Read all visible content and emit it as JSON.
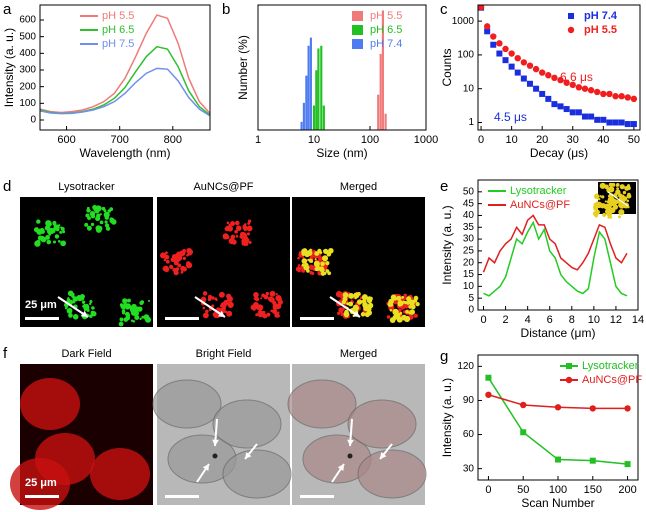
{
  "chart_data": [
    {
      "label": "a",
      "type": "line",
      "x_label": "Wavelength (nm)",
      "y_label": "Intensity (a. u.)",
      "x": [
        550,
        570,
        590,
        610,
        630,
        650,
        670,
        690,
        710,
        730,
        750,
        770,
        790,
        810,
        830,
        850,
        870
      ],
      "xlim": [
        550,
        870
      ],
      "ylim": [
        -60,
        690
      ],
      "xticks": [
        600,
        700,
        800
      ],
      "yticks": [
        0,
        100,
        200,
        300,
        400,
        500,
        600
      ],
      "legend": "upper left",
      "series": [
        {
          "name": "pH 5.5",
          "color": "#f07a7a",
          "values": [
            65,
            50,
            45,
            50,
            60,
            80,
            110,
            160,
            250,
            380,
            520,
            630,
            610,
            460,
            250,
            110,
            40
          ]
        },
        {
          "name": "pH 6.5",
          "color": "#2ec02e",
          "values": [
            60,
            45,
            40,
            42,
            50,
            65,
            90,
            130,
            195,
            290,
            380,
            440,
            425,
            320,
            175,
            80,
            30
          ]
        },
        {
          "name": "pH 7.5",
          "color": "#6f8ff0",
          "values": [
            55,
            42,
            38,
            40,
            48,
            60,
            80,
            110,
            160,
            225,
            280,
            310,
            305,
            235,
            135,
            65,
            25
          ]
        }
      ]
    },
    {
      "label": "b",
      "type": "bar",
      "x_label": "Size (nm)",
      "y_label": "Number (%)",
      "xlog": true,
      "xlim": [
        1,
        1000
      ],
      "ylim": [
        0,
        46
      ],
      "xticks": [
        1,
        10,
        100,
        1000
      ],
      "legend": "upper right",
      "series": [
        {
          "name": "pH 5.5",
          "color": "#f07a7a",
          "x": [
            140,
            155,
            170,
            190
          ],
          "values": [
            13,
            28,
            44,
            6
          ]
        },
        {
          "name": "pH 6.5",
          "color": "#22c022",
          "x": [
            10,
            11,
            12,
            13.5,
            15
          ],
          "values": [
            9,
            22,
            30,
            31,
            9
          ]
        },
        {
          "name": "pH 7.4",
          "color": "#4f7cf0",
          "x": [
            6,
            6.6,
            7.3,
            8,
            8.8
          ],
          "values": [
            3,
            10,
            20,
            31,
            34
          ]
        }
      ]
    },
    {
      "label": "c",
      "type": "scatter",
      "x_label": "Decay (μs)",
      "y_label": "Counts",
      "ylog": true,
      "x": [
        0,
        2,
        4,
        6,
        8,
        10,
        12,
        14,
        16,
        18,
        20,
        22,
        24,
        26,
        28,
        30,
        32,
        34,
        36,
        38,
        40,
        42,
        44,
        46,
        48,
        50
      ],
      "xlim": [
        -1,
        52
      ],
      "ylim": [
        0.6,
        3000
      ],
      "xticks": [
        0,
        10,
        20,
        30,
        40,
        50
      ],
      "yticks": [
        1,
        10,
        100,
        1000
      ],
      "legend": "upper right",
      "series": [
        {
          "name": "pH 7.4",
          "color": "#1a2ee0",
          "marker": "square",
          "values": [
            2500,
            500,
            200,
            110,
            70,
            45,
            30,
            20,
            14,
            10,
            7,
            5,
            3.5,
            3,
            2.5,
            2,
            2,
            1.5,
            1.5,
            1.2,
            1.2,
            1,
            1,
            1,
            0.9,
            0.9
          ]
        },
        {
          "name": "pH 5.5",
          "color": "#f01e1e",
          "marker": "circle",
          "values": [
            2600,
            700,
            350,
            220,
            150,
            110,
            80,
            60,
            48,
            38,
            30,
            25,
            21,
            18,
            15,
            13,
            11,
            10,
            9,
            8,
            7,
            7,
            6,
            6,
            5.5,
            5
          ]
        }
      ],
      "annotations": [
        {
          "text": "6.6 μs",
          "color": "#f01e1e"
        },
        {
          "text": "4.5 μs",
          "color": "#1a2ee0"
        }
      ]
    },
    {
      "label": "e",
      "type": "line",
      "x_label": "Distance (μm)",
      "y_label": "Intensity (a. u.)",
      "x": [
        0,
        0.5,
        1,
        1.5,
        2,
        2.5,
        3,
        3.5,
        4,
        4.5,
        5,
        5.5,
        6,
        6.5,
        7,
        7.5,
        8,
        8.5,
        9,
        9.5,
        10,
        10.5,
        11,
        11.5,
        12,
        12.5,
        13
      ],
      "xlim": [
        -0.5,
        14
      ],
      "ylim": [
        0,
        55
      ],
      "xticks": [
        0,
        2,
        4,
        6,
        8,
        10,
        12,
        14
      ],
      "yticks": [
        0,
        5,
        10,
        15,
        20,
        25,
        30,
        35,
        40,
        45,
        50
      ],
      "legend": "upper left",
      "series": [
        {
          "name": "Lysotracker",
          "color": "#22cc22",
          "values": [
            7,
            6,
            8,
            10,
            14,
            22,
            30,
            28,
            33,
            37,
            30,
            34,
            25,
            22,
            15,
            12,
            10,
            8,
            7,
            9,
            22,
            33,
            30,
            20,
            10,
            7,
            6
          ]
        },
        {
          "name": "AuNCs@PF",
          "color": "#e02020",
          "values": [
            16,
            22,
            20,
            25,
            28,
            30,
            35,
            32,
            38,
            40,
            36,
            36,
            30,
            28,
            22,
            20,
            18,
            17,
            20,
            24,
            30,
            36,
            35,
            28,
            22,
            20,
            24
          ]
        }
      ]
    },
    {
      "label": "g",
      "type": "line",
      "x_label": "Scan Number",
      "y_label": "Intensity (a. u.)",
      "x": [
        0,
        50,
        100,
        150,
        200
      ],
      "xlim": [
        -15,
        215
      ],
      "ylim": [
        20,
        130
      ],
      "xticks": [
        0,
        50,
        100,
        150,
        200
      ],
      "yticks": [
        30,
        60,
        90,
        120
      ],
      "legend": "upper right",
      "series": [
        {
          "name": "Lysotracker",
          "color": "#22c022",
          "marker": "square",
          "values": [
            110,
            62,
            38,
            37,
            34
          ]
        },
        {
          "name": "AuNCs@PF",
          "color": "#e01e1e",
          "marker": "circle",
          "values": [
            95,
            86,
            84,
            83,
            83
          ]
        }
      ]
    }
  ],
  "image_panels": [
    {
      "label": "d",
      "titles": [
        "Lysotracker",
        "AuNCs@PF",
        "Merged"
      ],
      "scale_bar": "25 μm"
    },
    {
      "label": "f",
      "titles": [
        "Dark Field",
        "Bright Field",
        "Merged"
      ],
      "scale_bar": "25 μm"
    }
  ]
}
